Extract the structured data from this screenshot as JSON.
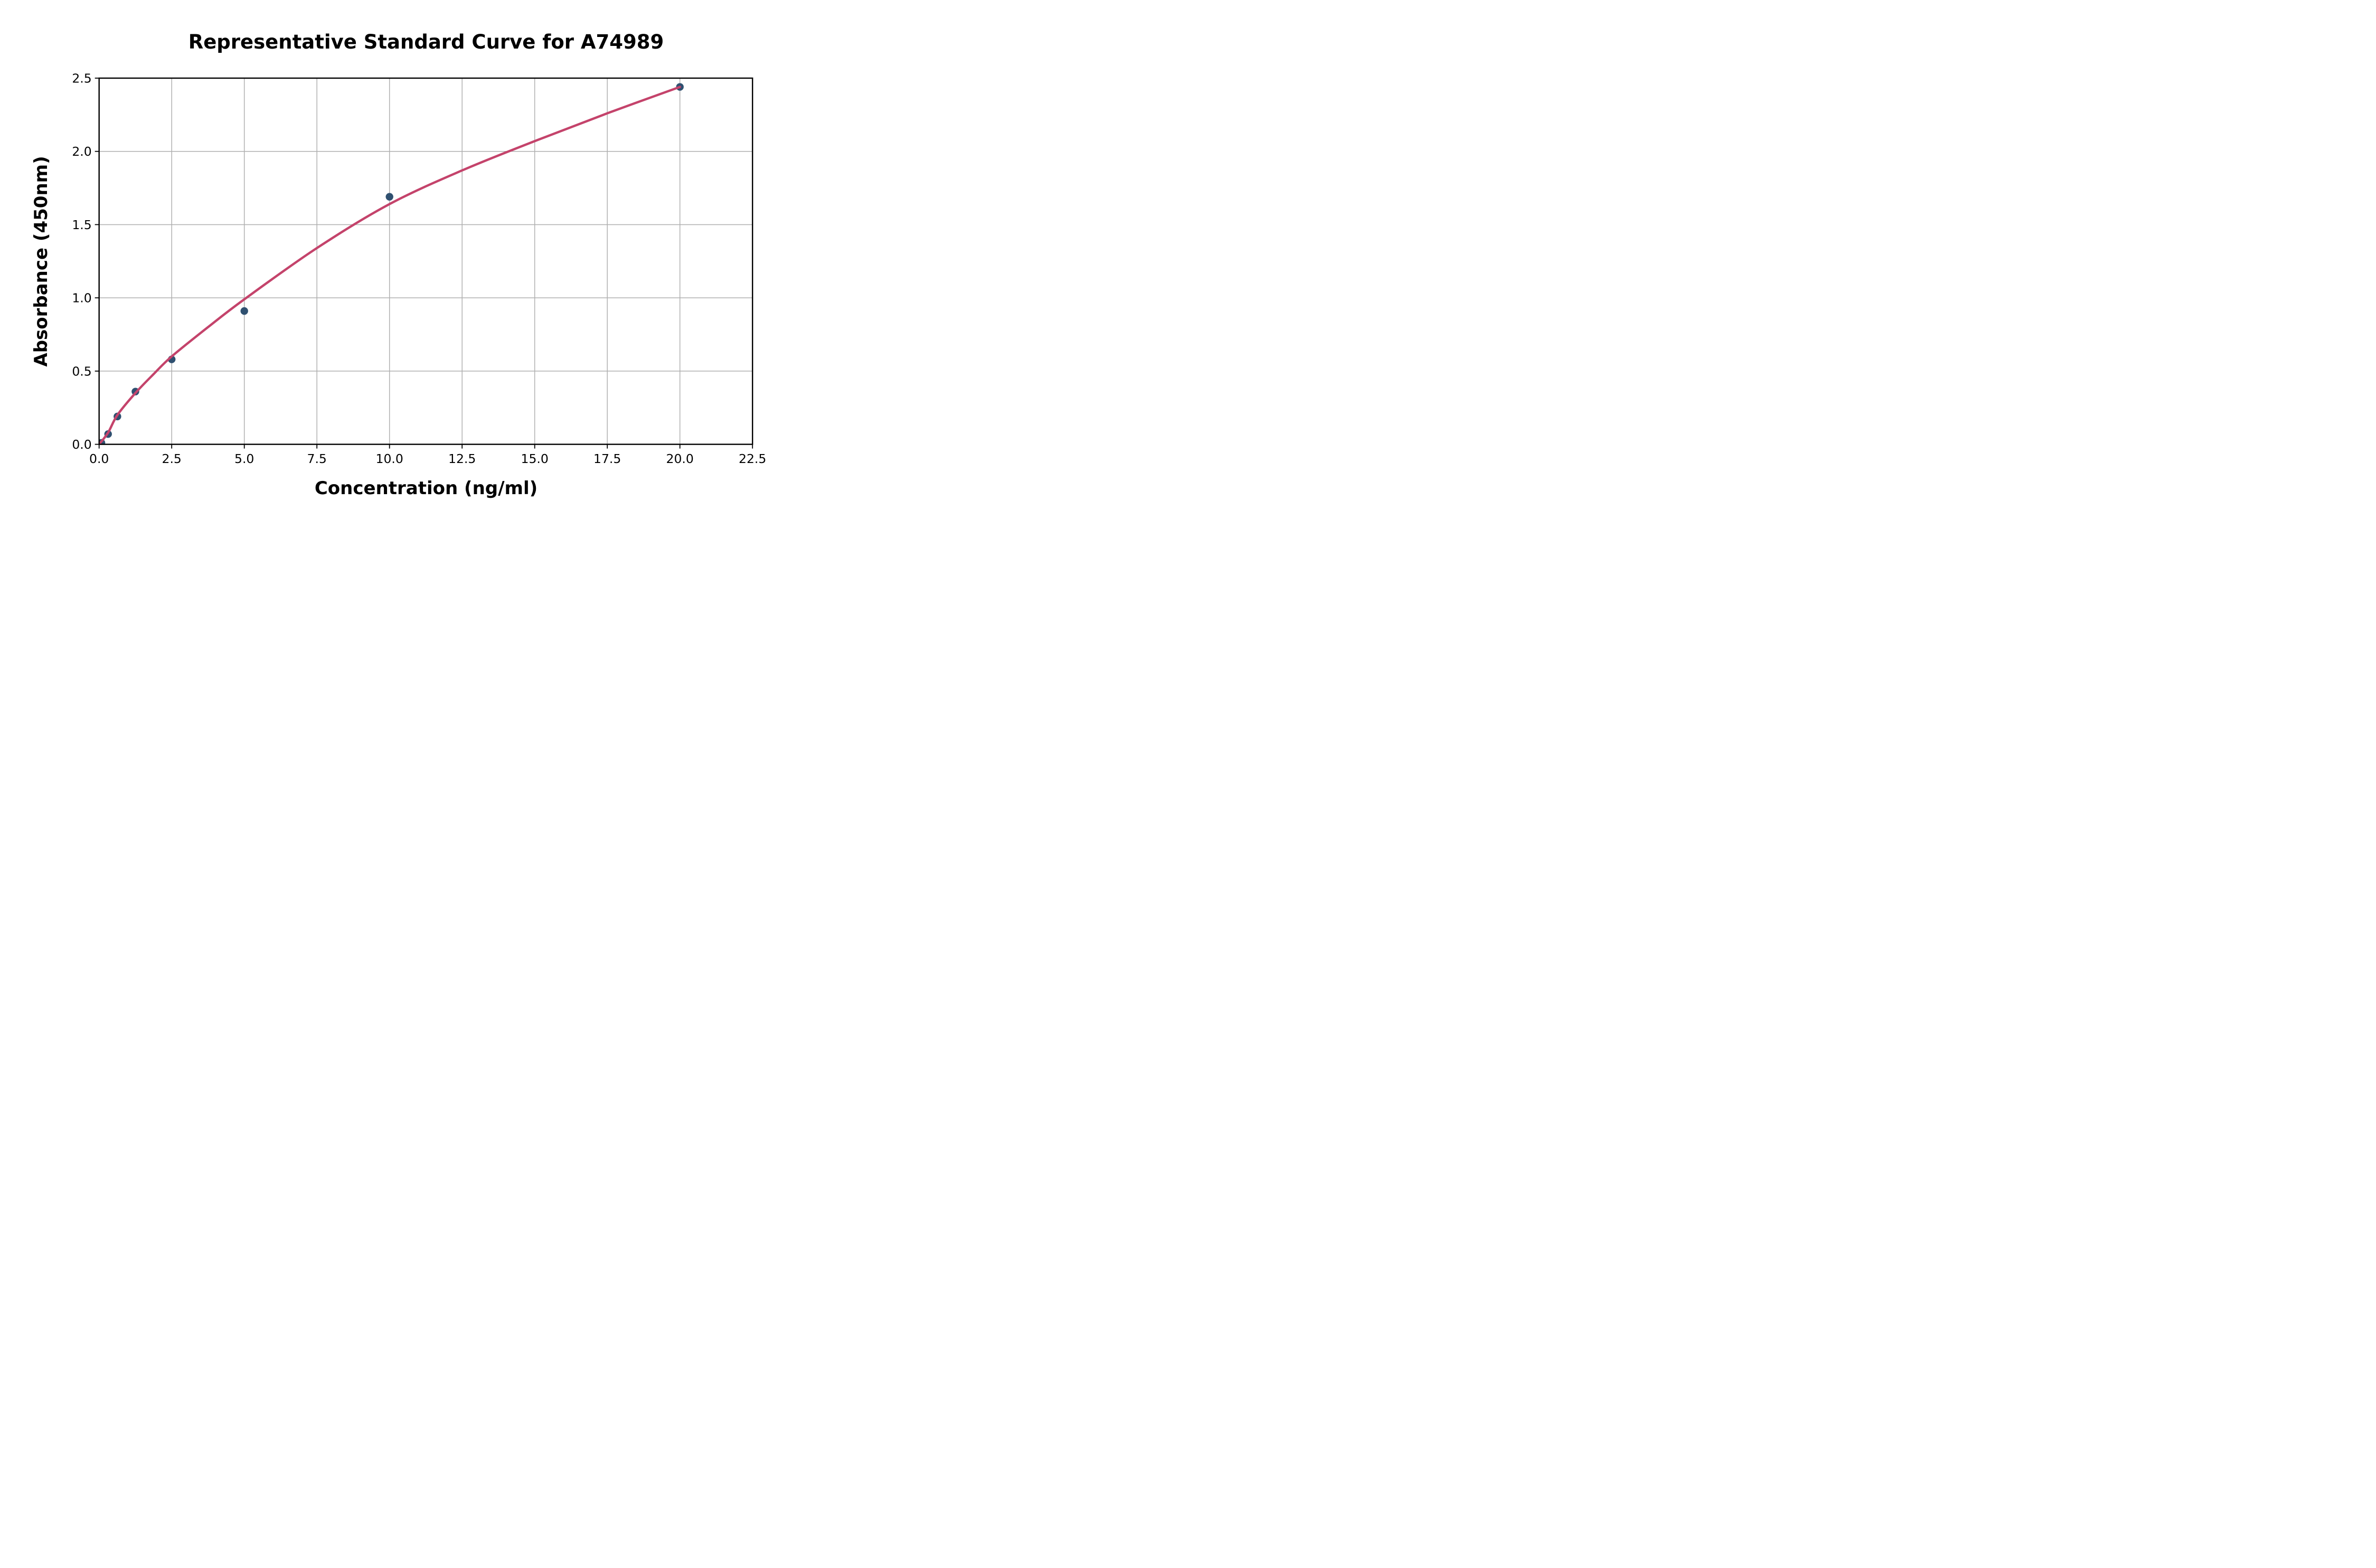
{
  "figure": {
    "background_color": "#ffffff"
  },
  "chart_data": {
    "type": "scatter",
    "title": "Representative Standard Curve for A74989",
    "xlabel": "Concentration (ng/ml)",
    "ylabel": "Absorbance (450nm)",
    "xlim": [
      0,
      22.5
    ],
    "ylim": [
      0,
      2.5
    ],
    "x_ticks": [
      0,
      2.5,
      5,
      7.5,
      10,
      12.5,
      15,
      17.5,
      20,
      22.5
    ],
    "x_tick_labels": [
      "0.0",
      "2.5",
      "5.0",
      "7.5",
      "10.0",
      "12.5",
      "15.0",
      "17.5",
      "20.0",
      "22.5"
    ],
    "y_ticks": [
      0,
      0.5,
      1,
      1.5,
      2,
      2.5
    ],
    "y_tick_labels": [
      "0.0",
      "0.5",
      "1.0",
      "1.5",
      "2.0",
      "2.5"
    ],
    "grid": true,
    "legend_position": "none",
    "series": [
      {
        "name": "standard-points",
        "kind": "scatter",
        "x": [
          0.08,
          0.31,
          0.63,
          1.25,
          2.5,
          5.0,
          10.0,
          20.0
        ],
        "y": [
          0.01,
          0.07,
          0.19,
          0.36,
          0.58,
          0.91,
          1.69,
          2.44
        ],
        "color": "#2F5070",
        "marker": "circle",
        "marker_radius": 7.2
      },
      {
        "name": "fitted-curve",
        "kind": "line",
        "x": [
          0,
          0.31,
          0.63,
          1.25,
          1.88,
          2.5,
          3.75,
          5.0,
          7.5,
          10.0,
          12.5,
          15.0,
          17.5,
          20.0
        ],
        "y": [
          0.0,
          0.08,
          0.2,
          0.35,
          0.48,
          0.6,
          0.8,
          0.99,
          1.34,
          1.64,
          1.87,
          2.07,
          2.26,
          2.44
        ],
        "color": "#C4436B",
        "line_width": 4.4
      }
    ],
    "colors": {
      "grid": "#B0B0B0",
      "spine": "#000000",
      "tick": "#000000",
      "text": "#000000"
    }
  }
}
